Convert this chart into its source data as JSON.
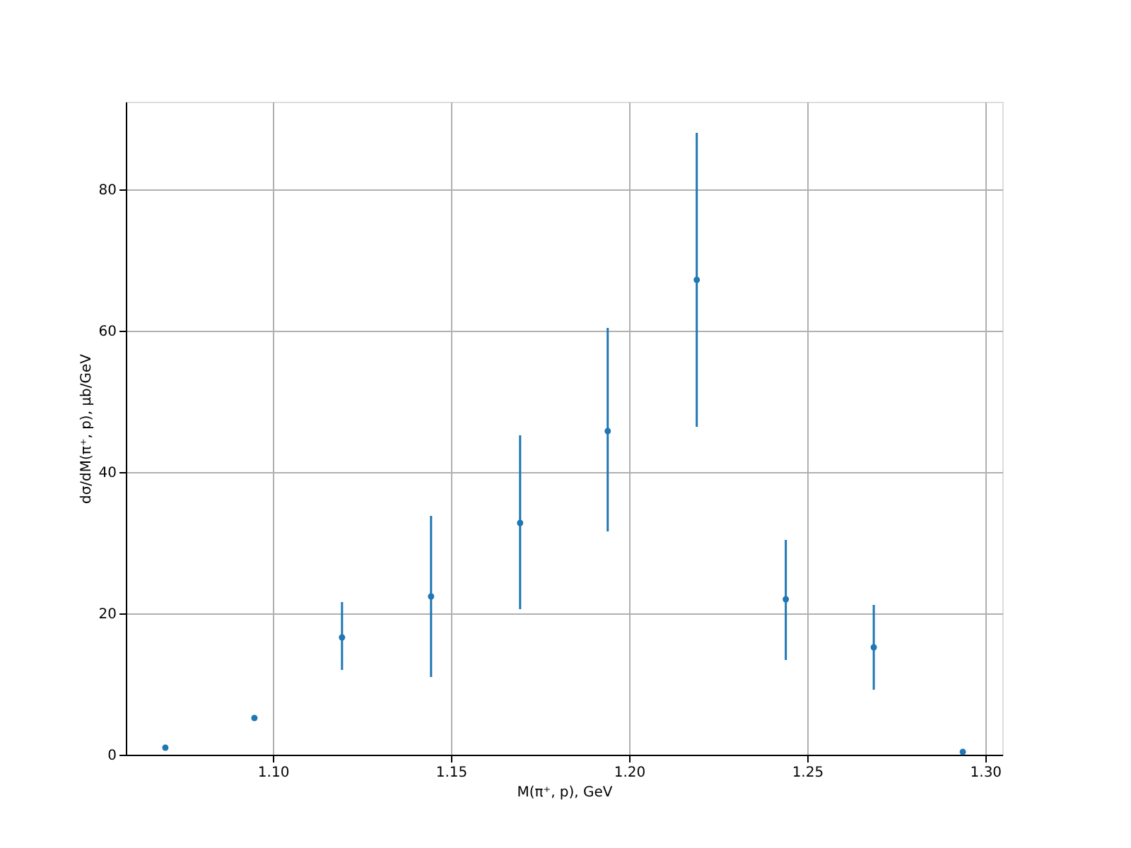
{
  "chart_data": {
    "type": "scatter",
    "xlabel": "M(π⁺, p), GeV",
    "ylabel": "dσ/dM(π⁺, p), μb/GeV",
    "x": [
      1.0698,
      1.0948,
      1.1194,
      1.1444,
      1.1694,
      1.194,
      1.219,
      1.244,
      1.2687,
      1.2937
    ],
    "series": [
      {
        "color": "#1f77b4",
        "values": [
          1.0,
          5.2,
          16.6,
          22.4,
          32.8,
          45.8,
          67.2,
          22.0,
          15.2,
          0.4
        ],
        "errors": [
          null,
          null,
          [
            12.0,
            21.6
          ],
          [
            11.0,
            33.8
          ],
          [
            20.6,
            45.2
          ],
          [
            31.6,
            60.4
          ],
          [
            46.4,
            88.0
          ],
          [
            13.4,
            30.4
          ],
          [
            9.2,
            21.2
          ],
          null
        ]
      }
    ],
    "xlim": [
      1.0587,
      1.3048
    ],
    "xticks": [
      {
        "value": 1.1,
        "label": "1.10"
      },
      1.15,
      {
        "value": 1.2,
        "label": "1.20"
      },
      1.25,
      {
        "value": 1.3,
        "label": "1.30"
      }
    ],
    "ylim": [
      0,
      92.4
    ],
    "yticks": [
      0,
      20,
      40,
      60,
      80
    ],
    "grid": true,
    "marker": "circle"
  }
}
